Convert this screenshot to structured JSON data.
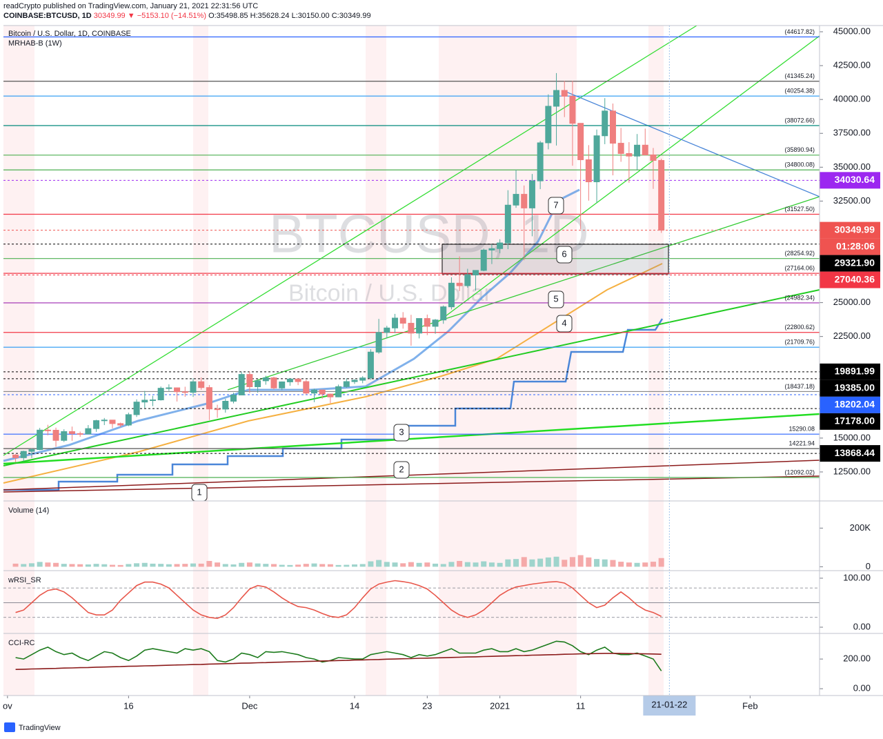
{
  "header": {
    "publisher": "readCrypto published on TradingView.com, January 21, 2021 22:31:56 UTC",
    "symbol": "COINBASE:BTCUSD, 1D",
    "last": "30349.99",
    "change": "▼ −5153.10 (−14.51%)",
    "open": "O:35498.85",
    "high": "H:35628.24",
    "low": "L:30150.00",
    "close": "C:30349.99",
    "legend": "Bitcoin / U.S. Dollar, 1D, COINBASE",
    "indicator": "MRHAB-B (1W)",
    "watermark": "BTCUSD, 1D",
    "watermark_sub": "Bitcoin / U.S. Dollar",
    "countdown": "01:28:06",
    "footer": "TradingView"
  },
  "chart_data": [
    {
      "type": "candlestick",
      "color_up": "#4fa89b",
      "color_down": "#ef7f7f",
      "xlim": [
        -1.5,
        99.6
      ],
      "ylim": [
        10460,
        45460
      ],
      "xticks": [
        {
          "value": -1,
          "label": "ov"
        },
        {
          "value": 14,
          "label": "16"
        },
        {
          "value": 29,
          "label": "Dec"
        },
        {
          "value": 42,
          "label": "14"
        },
        {
          "value": 51,
          "label": "23"
        },
        {
          "value": 60,
          "label": "2021"
        },
        {
          "value": 70,
          "label": "11"
        },
        {
          "value": 91,
          "label": "Feb"
        }
      ],
      "cursor": {
        "value": 81,
        "label": "21-01-22"
      },
      "yticks": [
        {
          "value": 12500,
          "label": "12500.00"
        },
        {
          "value": 15000,
          "label": "15000.00"
        },
        {
          "value": 17500,
          "label": "17500.00"
        },
        {
          "value": 20000,
          "label": "20000.00"
        },
        {
          "value": 22500,
          "label": "22500.00"
        },
        {
          "value": 25000,
          "label": "25000.00"
        },
        {
          "value": 27500,
          "label": "27500.00"
        },
        {
          "value": 30000,
          "label": "30000.00"
        },
        {
          "value": 32500,
          "label": "32500.00"
        },
        {
          "value": 35000,
          "label": "35000.00"
        },
        {
          "value": 37500,
          "label": "37500.00"
        },
        {
          "value": 40000,
          "label": "40000.00"
        },
        {
          "value": 42500,
          "label": "42500.00"
        },
        {
          "value": 45000,
          "label": "45000.00"
        }
      ],
      "open": [
        13750,
        13550,
        14020,
        14150,
        15590,
        15580,
        14830,
        15480,
        15330,
        15300,
        15700,
        16290,
        16330,
        16070,
        15960,
        16730,
        17660,
        17800,
        17820,
        18680,
        18710,
        18420,
        18380,
        19160,
        18730,
        17150,
        17140,
        17720,
        18180,
        19700,
        18790,
        19230,
        19450,
        18700,
        19150,
        19360,
        19170,
        18320,
        18550,
        18250,
        18040,
        18800,
        19170,
        19270,
        19440,
        21350,
        22800,
        23130,
        23860,
        23480,
        22750,
        23830,
        23250,
        23720,
        24690,
        26440,
        26250,
        27040,
        27380,
        28880,
        28990,
        29410,
        32200,
        33000,
        31990,
        33990,
        36800,
        39500,
        40670,
        40240,
        38240,
        35550,
        33920,
        37320,
        39150,
        36770,
        36010,
        35820,
        36630,
        35910,
        35498.85
      ],
      "high": [
        13820,
        14070,
        14250,
        15750,
        15980,
        15770,
        15650,
        15850,
        15480,
        15960,
        16350,
        16480,
        16340,
        16140,
        16880,
        17860,
        18480,
        18120,
        18810,
        18970,
        18730,
        18790,
        19420,
        19480,
        18920,
        17460,
        17900,
        18350,
        19870,
        19920,
        19330,
        19600,
        19530,
        19180,
        19420,
        19420,
        19300,
        18640,
        18560,
        18290,
        18950,
        19420,
        19350,
        19570,
        21560,
        23800,
        23290,
        24170,
        24300,
        24100,
        23840,
        24120,
        23790,
        24790,
        26870,
        28420,
        27500,
        27400,
        28990,
        29310,
        29680,
        33300,
        34810,
        33650,
        34500,
        36940,
        40380,
        41950,
        41370,
        41380,
        38260,
        36630,
        37780,
        40100,
        39700,
        37900,
        36850,
        37450,
        37850,
        36420,
        35628.24
      ],
      "low": [
        13220,
        13290,
        13530,
        14100,
        15200,
        14350,
        14710,
        14800,
        15090,
        15280,
        15460,
        15960,
        15720,
        15810,
        15880,
        16560,
        17220,
        17360,
        17770,
        18480,
        17700,
        18050,
        18040,
        18570,
        16330,
        16500,
        16880,
        17560,
        18180,
        18330,
        18350,
        18940,
        18600,
        18530,
        18860,
        18910,
        18210,
        17650,
        17910,
        17580,
        18020,
        18710,
        19000,
        19050,
        19300,
        21230,
        22350,
        22750,
        23080,
        21820,
        22360,
        22600,
        22700,
        23440,
        24500,
        25850,
        26100,
        25880,
        27320,
        27850,
        28650,
        28950,
        32000,
        28130,
        29900,
        33380,
        36320,
        36600,
        38700,
        35110,
        30420,
        32530,
        32370,
        36700,
        34400,
        35400,
        33850,
        34800,
        35900,
        33400,
        30150
      ],
      "close": [
        13550,
        14020,
        14150,
        15590,
        15580,
        14830,
        15480,
        15330,
        15300,
        15700,
        16290,
        16330,
        16070,
        15960,
        16730,
        17660,
        17800,
        17820,
        18680,
        18710,
        18420,
        18380,
        19160,
        18730,
        17150,
        17140,
        17720,
        18180,
        19700,
        18790,
        19230,
        19450,
        18700,
        19150,
        19360,
        19170,
        18320,
        18550,
        18250,
        18040,
        18800,
        19170,
        19270,
        19440,
        21350,
        22800,
        23130,
        23860,
        23480,
        22750,
        23830,
        23250,
        23720,
        24690,
        26440,
        26250,
        27040,
        27380,
        28880,
        28990,
        29410,
        32200,
        33000,
        31990,
        33990,
        36800,
        39500,
        40670,
        40240,
        38240,
        35550,
        33920,
        37320,
        39150,
        36770,
        36010,
        35820,
        36630,
        35910,
        35499,
        30349.99
      ],
      "levels": [
        {
          "value": 44617.82,
          "label": "(44617.82)",
          "color": "#2962ff"
        },
        {
          "value": 41345.24,
          "label": "(41345.24)",
          "color": "#555555"
        },
        {
          "value": 40254.38,
          "label": "(40254.38)",
          "color": "#2196f3"
        },
        {
          "value": 38072.66,
          "label": "(38072.66)",
          "color": "#00897b"
        },
        {
          "value": 35890.94,
          "label": "(35890.94)",
          "color": "#4caf50"
        },
        {
          "value": 34800.08,
          "label": "(34800.08)",
          "color": "#4caf50"
        },
        {
          "value": 31527.5,
          "label": "(31527.50)",
          "color": "#f23645"
        },
        {
          "value": 28254.92,
          "label": "(28254.92)",
          "color": "#4caf50"
        },
        {
          "value": 27164.06,
          "label": "(27164.06)",
          "color": "#f23645"
        },
        {
          "value": 24982.34,
          "label": "(24982.34)",
          "color": "#9c27b0"
        },
        {
          "value": 22800.62,
          "label": "(22800.62)",
          "color": "#f23645"
        },
        {
          "value": 21709.76,
          "label": "(21709.76)",
          "color": "#2196f3"
        },
        {
          "value": 18437.18,
          "label": "(18437.18)",
          "color": "#888888"
        },
        {
          "value": 15290.08,
          "color": "#2962ff"
        },
        {
          "value": 14221.94,
          "color": "#555555"
        },
        {
          "value": 12092.02,
          "label": "(12092.02)",
          "color": "#4caf50"
        }
      ],
      "price_tags": [
        {
          "value": 34030.64,
          "color": "#9c27f0"
        },
        {
          "value": 30349.99,
          "color": "#ef5350"
        },
        {
          "value": 29321.9,
          "label": "29321.90",
          "color": "#000000"
        },
        {
          "value": 27040.36,
          "color": "#f23645"
        },
        {
          "value": 19891.99,
          "color": "#000000"
        },
        {
          "value": 19385,
          "label": "19385.00",
          "color": "#000000"
        },
        {
          "value": 18202.04,
          "color": "#2962ff"
        },
        {
          "value": 17178,
          "label": "17178.00",
          "color": "#000000"
        },
        {
          "value": 13868.44,
          "color": "#000000"
        }
      ],
      "annotations": [
        "1",
        "2",
        "3",
        "4",
        "5",
        "6",
        "7"
      ]
    },
    {
      "type": "bar",
      "title": "Volume (14)",
      "color_up": "#9fd4cc",
      "color_down": "#f5a9a9",
      "ylim": [
        -13000,
        337000
      ],
      "yticks": [
        {
          "value": 200000,
          "label": "200K"
        },
        0
      ],
      "values": [
        16000,
        14000,
        18000,
        25000,
        22000,
        20000,
        15000,
        14000,
        13000,
        12000,
        15000,
        13000,
        10000,
        9000,
        14000,
        18000,
        20000,
        16000,
        15000,
        13000,
        14000,
        15000,
        17000,
        16000,
        30000,
        22000,
        14000,
        12000,
        20000,
        22000,
        17000,
        15000,
        14000,
        10000,
        9000,
        11000,
        15000,
        17000,
        14000,
        13000,
        9000,
        10000,
        12000,
        14000,
        28000,
        35000,
        25000,
        22000,
        18000,
        24000,
        20000,
        22000,
        16000,
        14000,
        25000,
        30000,
        24000,
        22000,
        28000,
        22000,
        20000,
        38000,
        40000,
        50000,
        38000,
        42000,
        48000,
        52000,
        36000,
        50000,
        60000,
        48000,
        40000,
        38000,
        35000,
        26000,
        22000,
        20000,
        22000,
        26000,
        45000
      ]
    },
    {
      "type": "line",
      "title": "wRSI_SR",
      "ylim": [
        -9.9,
        114
      ],
      "yticks": [
        {
          "value": 100,
          "label": "100.00"
        },
        {
          "value": 0,
          "label": "0.00"
        }
      ],
      "levels": [
        80,
        50,
        20
      ],
      "series": [
        {
          "color": "#e8564a",
          "values": [
            30,
            35,
            50,
            65,
            75,
            78,
            72,
            60,
            45,
            30,
            25,
            25,
            35,
            55,
            70,
            85,
            92,
            92,
            88,
            80,
            65,
            50,
            35,
            25,
            20,
            18,
            25,
            40,
            60,
            78,
            85,
            82,
            72,
            60,
            50,
            42,
            40,
            35,
            28,
            22,
            20,
            25,
            40,
            60,
            78,
            88,
            92,
            95,
            93,
            90,
            85,
            78,
            65,
            50,
            35,
            25,
            20,
            25,
            35,
            50,
            65,
            75,
            82,
            85,
            88,
            90,
            92,
            93,
            90,
            80,
            65,
            50,
            40,
            45,
            60,
            72,
            60,
            45,
            35,
            30,
            22
          ]
        }
      ]
    },
    {
      "type": "line",
      "title": "CCI-RC",
      "ylim": [
        -46,
        368
      ],
      "yticks": [
        {
          "value": 200,
          "label": "200.00"
        },
        {
          "value": 0,
          "label": "0.00"
        }
      ],
      "series": [
        {
          "color": "#1b7a1b",
          "values": [
            210,
            200,
            230,
            260,
            280,
            250,
            230,
            240,
            210,
            190,
            220,
            250,
            240,
            210,
            190,
            220,
            260,
            270,
            260,
            250,
            240,
            270,
            260,
            270,
            250,
            190,
            180,
            200,
            240,
            230,
            210,
            250,
            245,
            250,
            240,
            230,
            210,
            200,
            180,
            190,
            210,
            205,
            200,
            200,
            230,
            240,
            250,
            240,
            230,
            210,
            230,
            220,
            230,
            250,
            270,
            240,
            240,
            240,
            260,
            270,
            250,
            250,
            270,
            250,
            260,
            280,
            300,
            320,
            315,
            290,
            250,
            230,
            260,
            280,
            240,
            230,
            230,
            240,
            220,
            200,
            120
          ]
        },
        {
          "color": "#8b1a1a",
          "values": [
            130,
            131,
            133,
            134,
            136,
            137,
            139,
            140,
            142,
            143,
            145,
            146,
            148,
            149,
            151,
            152,
            154,
            155,
            157,
            158,
            160,
            161,
            163,
            164,
            166,
            167,
            169,
            170,
            172,
            173,
            175,
            176,
            178,
            179,
            181,
            182,
            184,
            185,
            187,
            188,
            190,
            191,
            193,
            194,
            196,
            197,
            199,
            200,
            202,
            203,
            205,
            206,
            208,
            209,
            211,
            212,
            214,
            215,
            217,
            218,
            220,
            221,
            223,
            224,
            226,
            227,
            229,
            230,
            232,
            233,
            235,
            236,
            237,
            238,
            238,
            238,
            237,
            236,
            235,
            234,
            232
          ]
        }
      ]
    }
  ]
}
